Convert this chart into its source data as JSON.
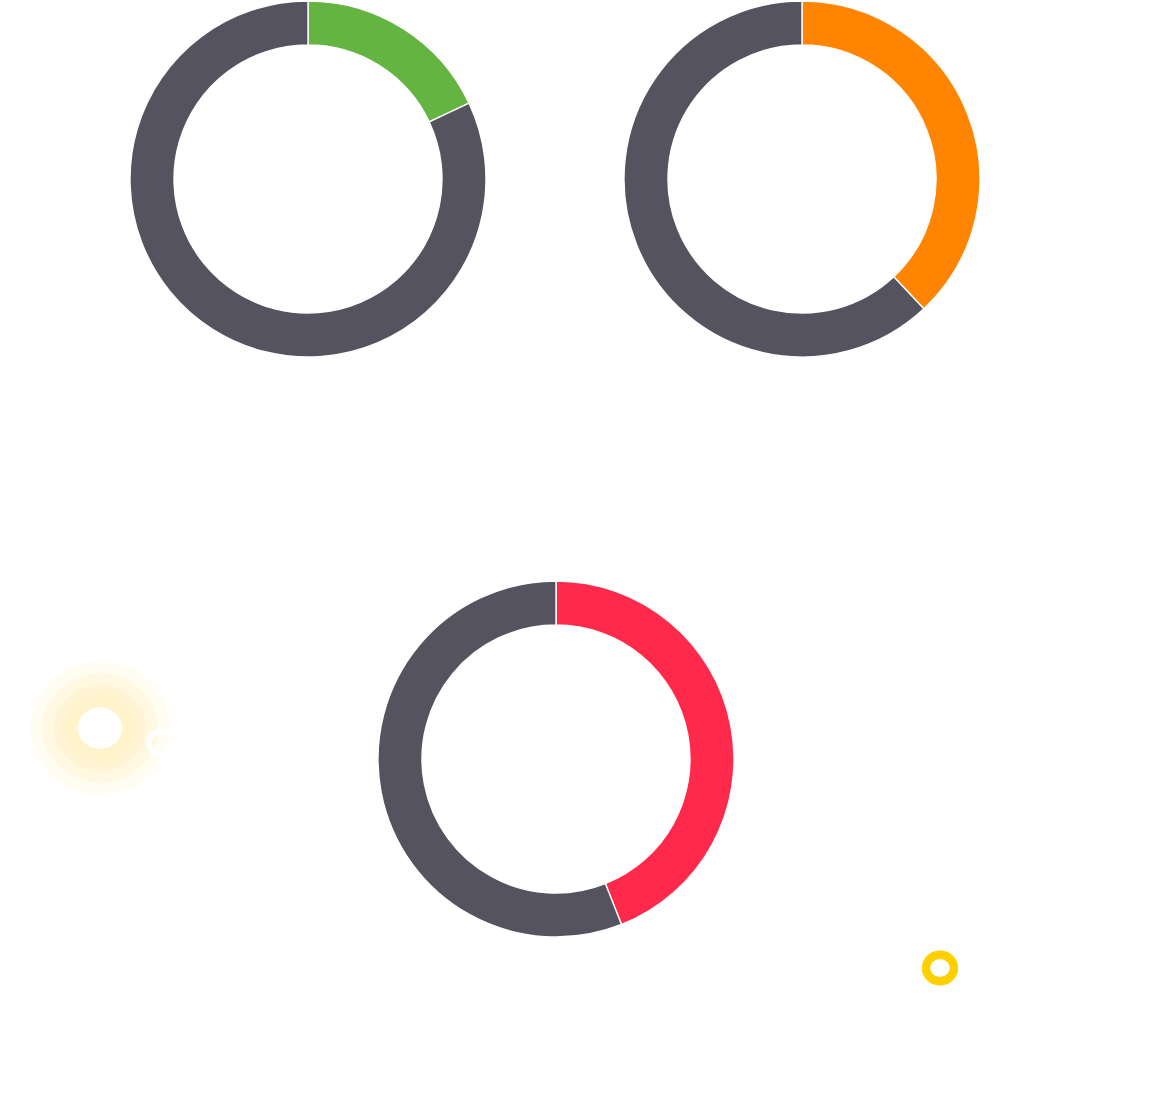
{
  "chart_data": [
    {
      "type": "donut",
      "categories": [
        null,
        null
      ],
      "values": [
        18,
        82
      ],
      "colors": [
        "#64b441",
        "#55535f"
      ]
    },
    {
      "type": "donut",
      "categories": [
        null,
        null
      ],
      "values": [
        38,
        62
      ],
      "colors": [
        "#ff8500",
        "#55535f"
      ]
    },
    {
      "type": "donut",
      "categories": [
        null,
        null
      ],
      "values": [
        44,
        56
      ],
      "colors": [
        "#ff2a4b",
        "#55535f"
      ]
    }
  ]
}
